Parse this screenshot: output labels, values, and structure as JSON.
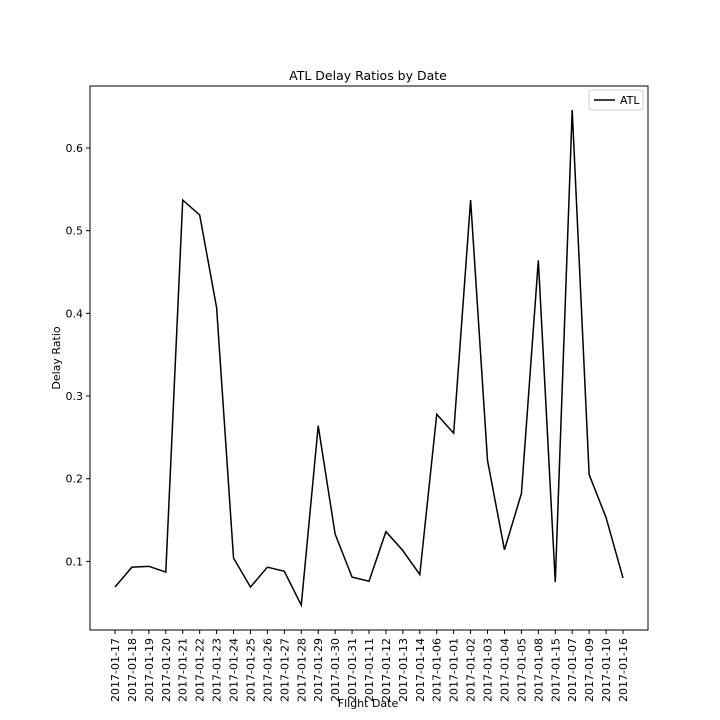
{
  "chart_data": {
    "type": "line",
    "title": "ATL Delay Ratios by Date",
    "xlabel": "Flight Date",
    "ylabel": "Delay Ratio",
    "ylim": [
      0.017,
      0.675
    ],
    "yticks": [
      0.1,
      0.2,
      0.3,
      0.4,
      0.5,
      0.6
    ],
    "grid": false,
    "legend": "top-right",
    "categories": [
      "2017-01-17",
      "2017-01-18",
      "2017-01-19",
      "2017-01-20",
      "2017-01-21",
      "2017-01-22",
      "2017-01-23",
      "2017-01-24",
      "2017-01-25",
      "2017-01-26",
      "2017-01-27",
      "2017-01-28",
      "2017-01-29",
      "2017-01-30",
      "2017-01-31",
      "2017-01-11",
      "2017-01-12",
      "2017-01-13",
      "2017-01-14",
      "2017-01-06",
      "2017-01-01",
      "2017-01-02",
      "2017-01-03",
      "2017-01-04",
      "2017-01-05",
      "2017-01-08",
      "2017-01-15",
      "2017-01-07",
      "2017-01-09",
      "2017-01-10",
      "2017-01-16"
    ],
    "series": [
      {
        "name": "ATL",
        "color": "#000000",
        "values": [
          0.069,
          0.093,
          0.094,
          0.087,
          0.537,
          0.519,
          0.407,
          0.104,
          0.069,
          0.093,
          0.088,
          0.047,
          0.264,
          0.133,
          0.081,
          0.076,
          0.136,
          0.113,
          0.084,
          0.278,
          0.255,
          0.537,
          0.222,
          0.114,
          0.182,
          0.464,
          0.075,
          0.646,
          0.205,
          0.153,
          0.08
        ]
      }
    ]
  }
}
